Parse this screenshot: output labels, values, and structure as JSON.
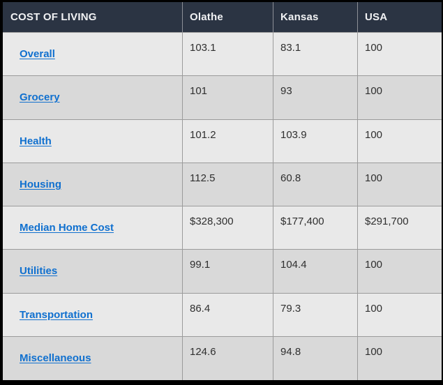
{
  "table": {
    "title": "COST OF LIVING",
    "columns": [
      "Olathe",
      "Kansas",
      "USA"
    ],
    "rows": [
      {
        "label": "Overall",
        "values": [
          "103.1",
          "83.1",
          "100"
        ]
      },
      {
        "label": "Grocery",
        "values": [
          "101",
          "93",
          "100"
        ]
      },
      {
        "label": "Health",
        "values": [
          "101.2",
          "103.9",
          "100"
        ]
      },
      {
        "label": "Housing",
        "values": [
          "112.5",
          "60.8",
          "100"
        ]
      },
      {
        "label": "Median Home Cost",
        "values": [
          "$328,300",
          "$177,400",
          "$291,700"
        ]
      },
      {
        "label": "Utilities",
        "values": [
          "99.1",
          "104.4",
          "100"
        ]
      },
      {
        "label": "Transportation",
        "values": [
          "86.4",
          "79.3",
          "100"
        ]
      },
      {
        "label": "Miscellaneous",
        "values": [
          "124.6",
          "94.8",
          "100"
        ]
      }
    ],
    "colors": {
      "header_bg": "#2b3443",
      "header_text": "#f1f2f4",
      "row_light": "#e9e9e9",
      "row_dark": "#d9d9d9",
      "border": "#9b9b9b",
      "link_blue": "#1070cf",
      "value_text": "#2f2f2f",
      "page_bg": "#000000"
    }
  }
}
